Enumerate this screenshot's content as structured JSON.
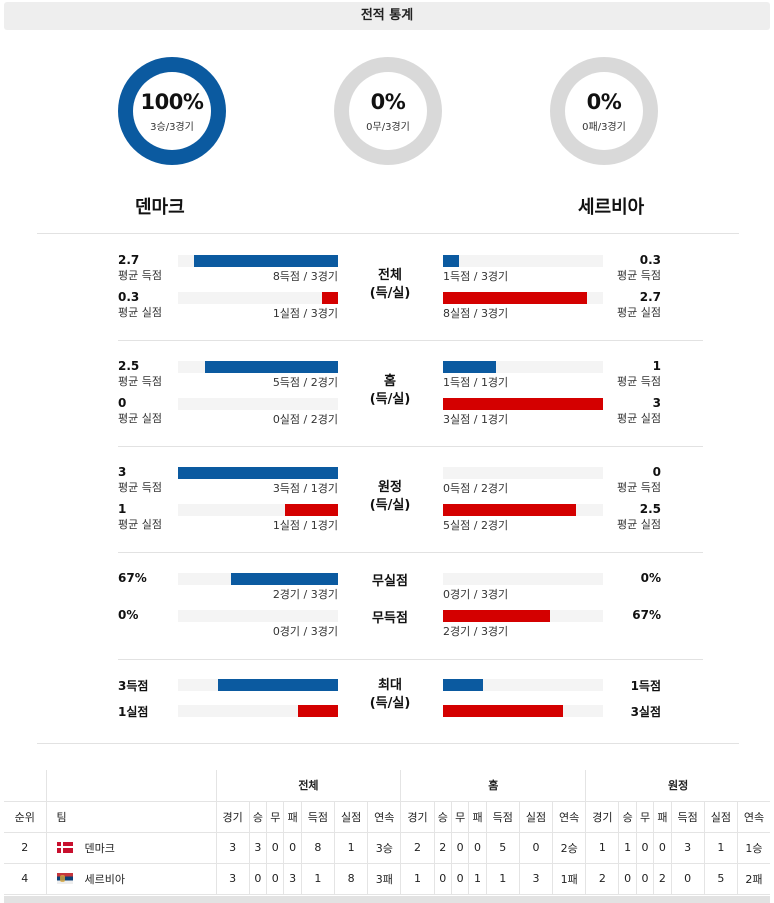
{
  "title": "전적 통계",
  "colors": {
    "home_bar": "#0b5aa0",
    "away_bar": "#d40000",
    "donut_home": "#0b5aa0",
    "donut_empty": "#d9d9d9"
  },
  "donuts": [
    {
      "pct": "100%",
      "sub": "3승/3경기",
      "fraction": 1.0
    },
    {
      "pct": "0%",
      "sub": "0무/3경기",
      "fraction": 0.0
    },
    {
      "pct": "0%",
      "sub": "0패/3경기",
      "fraction": 0.0
    }
  ],
  "teams": {
    "home": "덴마크",
    "away": "세르비아"
  },
  "sections": [
    {
      "center": [
        "전체",
        "(득/실)"
      ],
      "rows": [
        {
          "left_num": "2.7",
          "left_lbl": "평균 득점",
          "left_cap": "8득점 / 3경기",
          "left_frac": 0.9,
          "right_num": "0.3",
          "right_lbl": "평균 득점",
          "right_cap": "1득점 / 3경기",
          "right_frac": 0.1
        },
        {
          "left_num": "0.3",
          "left_lbl": "평균 실점",
          "left_cap": "1실점 / 3경기",
          "left_frac": 0.1,
          "right_num": "2.7",
          "right_lbl": "평균 실점",
          "right_cap": "8실점 / 3경기",
          "right_frac": 0.9
        }
      ]
    },
    {
      "center": [
        "홈",
        "(득/실)"
      ],
      "rows": [
        {
          "left_num": "2.5",
          "left_lbl": "평균 득점",
          "left_cap": "5득점 / 2경기",
          "left_frac": 0.83,
          "right_num": "1",
          "right_lbl": "평균 득점",
          "right_cap": "1득점 / 1경기",
          "right_frac": 0.33
        },
        {
          "left_num": "0",
          "left_lbl": "평균 실점",
          "left_cap": "0실점 / 2경기",
          "left_frac": 0.0,
          "right_num": "3",
          "right_lbl": "평균 실점",
          "right_cap": "3실점 / 1경기",
          "right_frac": 1.0
        }
      ]
    },
    {
      "center": [
        "원정",
        "(득/실)"
      ],
      "rows": [
        {
          "left_num": "3",
          "left_lbl": "평균 득점",
          "left_cap": "3득점 / 1경기",
          "left_frac": 1.0,
          "right_num": "0",
          "right_lbl": "평균 득점",
          "right_cap": "0득점 / 2경기",
          "right_frac": 0.0
        },
        {
          "left_num": "1",
          "left_lbl": "평균 실점",
          "left_cap": "1실점 / 1경기",
          "left_frac": 0.33,
          "right_num": "2.5",
          "right_lbl": "평균 실점",
          "right_cap": "5실점 / 2경기",
          "right_frac": 0.83
        }
      ]
    },
    {
      "center_rows": [
        "무실점",
        "무득점"
      ],
      "rows": [
        {
          "left_num": "67%",
          "left_cap": "2경기 / 3경기",
          "left_frac": 0.67,
          "right_num": "0%",
          "right_cap": "0경기 / 3경기",
          "right_frac": 0.0
        },
        {
          "left_num": "0%",
          "left_cap": "0경기 / 3경기",
          "left_frac": 0.0,
          "right_num": "67%",
          "right_cap": "2경기 / 3경기",
          "right_frac": 0.67
        }
      ]
    },
    {
      "center": [
        "최대",
        "(득/실)"
      ],
      "rows": [
        {
          "left_num": "3득점",
          "left_frac": 0.75,
          "right_num": "1득점",
          "right_frac": 0.25
        },
        {
          "left_num": "1실점",
          "left_frac": 0.25,
          "right_num": "3실점",
          "right_frac": 0.75
        }
      ]
    }
  ],
  "standings": {
    "groups": [
      "전체",
      "홈",
      "원정"
    ],
    "cols": [
      "순위",
      "팀"
    ],
    "sub_cols": [
      "경기",
      "승",
      "무",
      "패",
      "득점",
      "실점",
      "연속"
    ],
    "rows": [
      {
        "rank": "2",
        "team": "덴마크",
        "flag": "denmark-flag",
        "all": [
          "3",
          "3",
          "0",
          "0",
          "8",
          "1",
          "3승"
        ],
        "home": [
          "2",
          "2",
          "0",
          "0",
          "5",
          "0",
          "2승"
        ],
        "away": [
          "1",
          "1",
          "0",
          "0",
          "3",
          "1",
          "1승"
        ]
      },
      {
        "rank": "4",
        "team": "세르비아",
        "flag": "serbia-flag",
        "all": [
          "3",
          "0",
          "0",
          "3",
          "1",
          "8",
          "3패"
        ],
        "home": [
          "1",
          "0",
          "0",
          "1",
          "1",
          "3",
          "1패"
        ],
        "away": [
          "2",
          "0",
          "0",
          "2",
          "0",
          "5",
          "2패"
        ]
      }
    ]
  }
}
